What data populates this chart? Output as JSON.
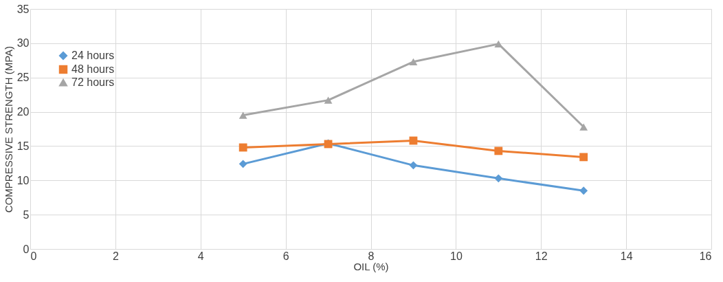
{
  "chart_data": {
    "type": "line",
    "xlabel": "OIL (%)",
    "ylabel": "COMPRESSIVE STRENGTH (MPA)",
    "x": [
      5,
      7,
      9,
      11,
      13
    ],
    "series": [
      {
        "name": "24 hours",
        "color": "#5b9bd5",
        "marker": "diamond",
        "values": [
          12.4,
          15.4,
          12.2,
          10.3,
          8.5
        ]
      },
      {
        "name": "48 hours",
        "color": "#ed7d31",
        "marker": "square",
        "values": [
          14.8,
          15.3,
          15.8,
          14.3,
          13.4
        ]
      },
      {
        "name": "72 hours",
        "color": "#a5a5a5",
        "marker": "triangle",
        "values": [
          19.5,
          21.7,
          27.3,
          29.9,
          17.8
        ]
      }
    ],
    "xlim": [
      0,
      16
    ],
    "xticks": [
      0,
      2,
      4,
      6,
      8,
      10,
      12,
      14,
      16
    ],
    "ylim": [
      0,
      35
    ],
    "yticks": [
      0,
      5,
      10,
      15,
      20,
      25,
      30,
      35
    ],
    "grid": true,
    "legend": "top left",
    "line_style": "solid"
  }
}
